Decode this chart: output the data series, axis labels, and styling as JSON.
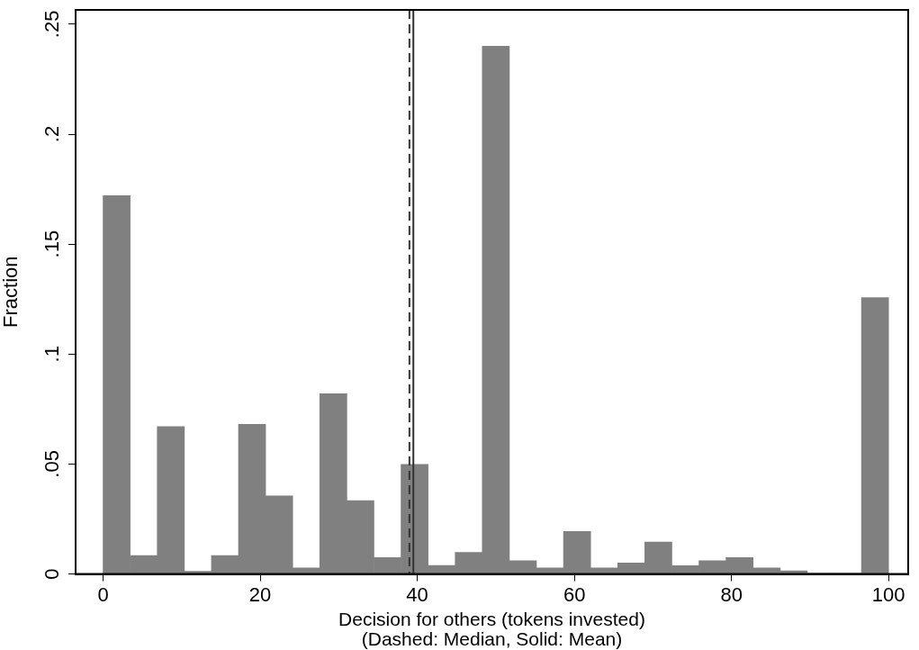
{
  "chart_data": {
    "type": "histogram",
    "xlabel": "Decision for others (tokens invested)",
    "ylabel": "Fraction",
    "annotations": [
      "(Dashed: Median, Solid: Mean)"
    ],
    "bins": [
      0,
      3.448,
      6.897,
      10.345,
      13.793,
      17.241,
      20.69,
      24.138,
      27.586,
      31.034,
      34.483,
      37.931,
      41.379,
      44.828,
      48.276,
      51.724,
      55.172,
      58.621,
      62.069,
      65.517,
      68.966,
      72.414,
      75.862,
      79.31,
      82.759,
      86.207,
      89.655,
      93.103,
      96.552,
      100
    ],
    "values": [
      0.172,
      0.0084,
      0.067,
      0.0012,
      0.0084,
      0.068,
      0.0355,
      0.0027,
      0.082,
      0.0333,
      0.0074,
      0.0498,
      0.0039,
      0.0098,
      0.24,
      0.006,
      0.0027,
      0.0193,
      0.0027,
      0.005,
      0.0145,
      0.0038,
      0.006,
      0.0074,
      0.0027,
      0.0014,
      0.0004,
      0.0004,
      0.1257
    ],
    "color": "#808080",
    "xlim": [
      -3.5,
      102.5
    ],
    "xticks": [
      0,
      20,
      40,
      60,
      80,
      100
    ],
    "ylim": [
      0,
      0.2565
    ],
    "yticks": [
      0,
      {
        "value": 0.05,
        "label": ".05"
      },
      {
        "value": 0.1,
        "label": ".1"
      },
      {
        "value": 0.15,
        "label": ".15"
      },
      {
        "value": 0.2,
        "label": ".2"
      },
      {
        "value": 0.25,
        "label": ".25"
      }
    ],
    "ref_lines": [
      {
        "axis": "x",
        "value": 39,
        "line_style": "dashed",
        "color": "#333333"
      },
      {
        "axis": "x",
        "value": 39.5,
        "line_style": "solid",
        "color": "#333333"
      }
    ],
    "grid": false,
    "legend": false
  }
}
